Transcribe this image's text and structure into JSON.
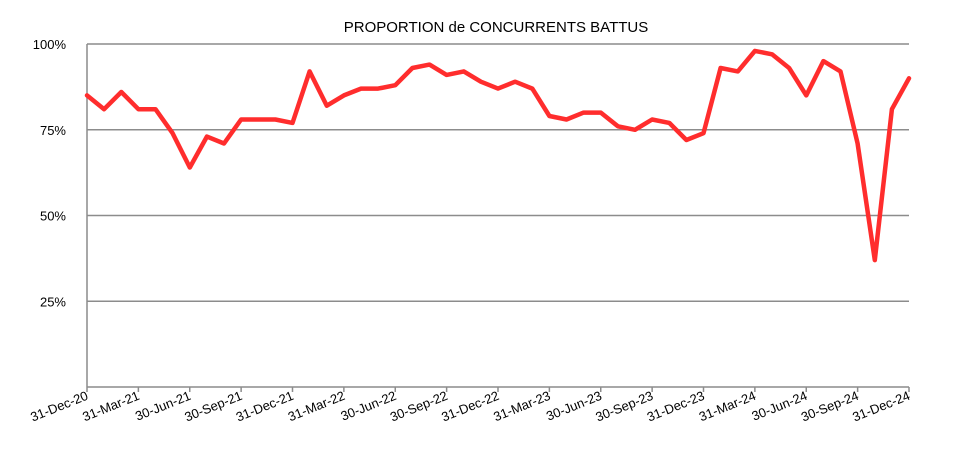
{
  "chart_data": {
    "type": "line",
    "title": "PROPORTION de CONCURRENTS BATTUS",
    "xlabel": "",
    "ylabel": "",
    "ylim": [
      0,
      100
    ],
    "y_ticks": [
      25,
      50,
      75,
      100
    ],
    "y_tick_labels": [
      "25%",
      "50%",
      "75%",
      "100%"
    ],
    "grid": "horizontal",
    "line_color": "#ff2d2d",
    "x_tick_labels": [
      "31-Dec-20",
      "31-Mar-21",
      "30-Jun-21",
      "30-Sep-21",
      "31-Dec-21",
      "31-Mar-22",
      "30-Jun-22",
      "30-Sep-22",
      "31-Dec-22",
      "31-Mar-23",
      "30-Jun-23",
      "30-Sep-23",
      "31-Dec-23",
      "31-Mar-24",
      "30-Jun-24",
      "30-Sep-24",
      "31-Dec-24"
    ],
    "x_tick_positions": [
      0,
      3,
      6,
      9,
      12,
      15,
      18,
      21,
      24,
      27,
      30,
      33,
      36,
      39,
      42,
      45,
      48
    ],
    "series": [
      {
        "values": [
          85,
          81,
          86,
          81,
          81,
          74,
          64,
          73,
          71,
          78,
          78,
          78,
          77,
          92,
          82,
          85,
          87,
          87,
          88,
          93,
          94,
          91,
          92,
          89,
          87,
          89,
          87,
          79,
          78,
          80,
          80,
          76,
          75,
          78,
          77,
          72,
          74,
          93,
          92,
          98,
          97,
          93,
          85,
          95,
          92,
          71,
          37,
          81,
          90
        ]
      }
    ]
  }
}
